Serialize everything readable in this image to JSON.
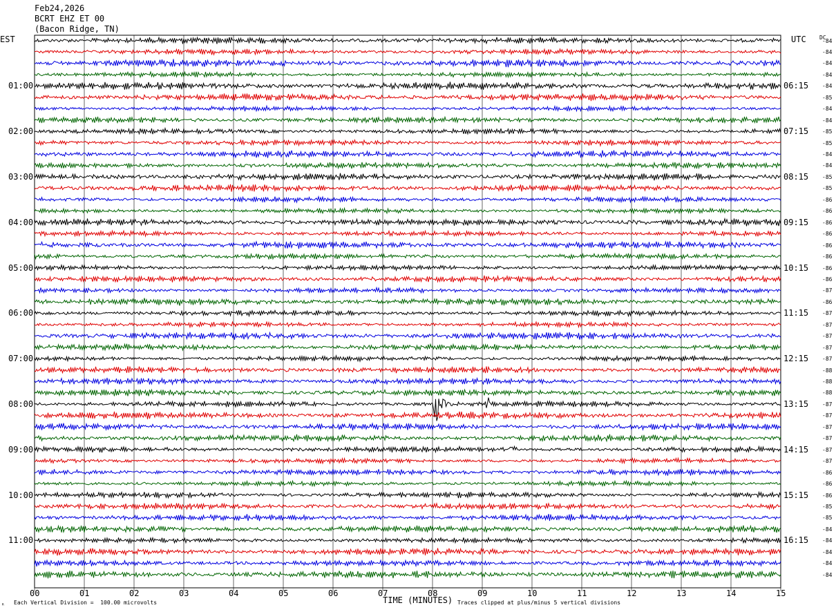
{
  "header": {
    "date": "Feb24,2026",
    "station": "BCRT EHZ ET 00",
    "location": "(Bacon Ridge, TN)"
  },
  "left_axis_title": "EST",
  "right_axis_title": "UTC",
  "dc_label": "DC",
  "footer": {
    "scale_note": "Each Vertical Division =  100.00 microvolts",
    "x_axis_title": "TIME (MINUTES)",
    "clip_note": "Traces clipped at plus/minus 5 vertical divisions"
  },
  "colors": {
    "cycle": [
      "#000000",
      "#e00000",
      "#0000e0",
      "#006400"
    ]
  },
  "chart_data": {
    "type": "line",
    "title": "BCRT EHZ ET 00 (Bacon Ridge, TN) Feb24,2026",
    "xlabel": "TIME (MINUTES)",
    "xlim": [
      0,
      15
    ],
    "x_ticks": [
      "00",
      "01",
      "02",
      "03",
      "04",
      "05",
      "06",
      "07",
      "08",
      "09",
      "10",
      "11",
      "12",
      "13",
      "14",
      "15"
    ],
    "rows_per_hour": 4,
    "left_hour_labels": [
      "01:00",
      "02:00",
      "03:00",
      "04:00",
      "05:00",
      "06:00",
      "07:00",
      "08:00",
      "09:00",
      "10:00",
      "11:00"
    ],
    "right_hour_labels": [
      "06:15",
      "07:15",
      "08:15",
      "09:15",
      "10:15",
      "11:15",
      "12:15",
      "13:15",
      "14:15",
      "15:15",
      "16:15"
    ],
    "dc_offsets": [
      "-84",
      "-84",
      "-84",
      "-84",
      "-84",
      "-85",
      "-84",
      "-84",
      "-85",
      "-85",
      "-84",
      "-84",
      "-85",
      "-85",
      "-86",
      "-86",
      "-86",
      "-86",
      "-86",
      "-86",
      "-86",
      "-86",
      "-87",
      "-86",
      "-87",
      "-87",
      "-87",
      "-87",
      "-87",
      "-88",
      "-88",
      "-88",
      "-87",
      "-87",
      "-87",
      "-87",
      "-87",
      "-87",
      "-86",
      "-86",
      "-86",
      "-85",
      "-85",
      "-84",
      "-84",
      "-84",
      "-84",
      "-84"
    ],
    "events": [
      {
        "row": 32,
        "minute": 8.05,
        "amplitude": "clipped"
      },
      {
        "row": 32,
        "minute": 9.1,
        "amplitude": "medium"
      },
      {
        "row": 36,
        "minute": 9.6,
        "amplitude": "small"
      }
    ]
  }
}
